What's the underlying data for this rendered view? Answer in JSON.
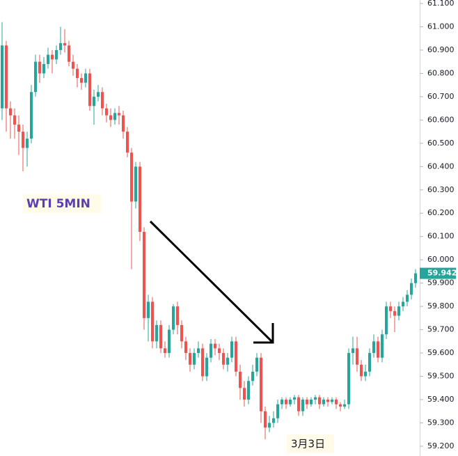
{
  "chart_data": {
    "type": "candlestick",
    "annotations": [
      "WTI 5MIN",
      "3月3日"
    ],
    "up_color": "#26a69a",
    "down_color": "#ef5350",
    "last_price_color": "#26a69a",
    "ylim": [
      59.158,
      61.115
    ],
    "yticks": [
      {
        "value": 61.1,
        "label": "61.100"
      },
      {
        "value": 61.0,
        "label": "61.000"
      },
      {
        "value": 60.9,
        "label": "60.900"
      },
      {
        "value": 60.8,
        "label": "60.800"
      },
      {
        "value": 60.7,
        "label": "60.700"
      },
      {
        "value": 60.6,
        "label": "60.600"
      },
      {
        "value": 60.5,
        "label": "60.500"
      },
      {
        "value": 60.4,
        "label": "60.400"
      },
      {
        "value": 60.3,
        "label": "60.300"
      },
      {
        "value": 60.2,
        "label": "60.200"
      },
      {
        "value": 60.1,
        "label": "60.100"
      },
      {
        "value": 60.0,
        "label": "60.000"
      },
      {
        "value": 59.9,
        "label": "59.900"
      },
      {
        "value": 59.8,
        "label": "59.800"
      },
      {
        "value": 59.7,
        "label": "59.700"
      },
      {
        "value": 59.6,
        "label": "59.600"
      },
      {
        "value": 59.5,
        "label": "59.500"
      },
      {
        "value": 59.4,
        "label": "59.400"
      },
      {
        "value": 59.3,
        "label": "59.300"
      },
      {
        "value": 59.2,
        "label": "59.200"
      }
    ],
    "open": [
      60.65,
      60.92,
      60.65,
      60.62,
      60.58,
      60.55,
      60.48,
      60.52,
      60.72,
      60.85,
      60.8,
      60.84,
      60.88,
      60.86,
      60.9,
      60.93,
      60.92,
      60.85,
      60.82,
      60.78,
      60.76,
      60.8,
      60.66,
      60.7,
      60.72,
      60.65,
      60.62,
      60.6,
      60.63,
      60.62,
      60.55,
      60.46,
      60.25,
      60.4,
      60.12,
      59.75,
      59.82,
      59.65,
      59.72,
      59.62,
      59.6,
      59.7,
      59.8,
      59.72,
      59.65,
      59.6,
      59.55,
      59.6,
      59.62,
      59.5,
      59.58,
      59.64,
      59.62,
      59.6,
      59.55,
      59.58,
      59.65,
      59.52,
      59.45,
      59.4,
      59.48,
      59.52,
      59.58,
      59.35,
      59.28,
      59.3,
      59.32,
      59.38,
      59.4,
      59.38,
      59.4,
      59.41,
      59.35,
      59.4,
      59.38,
      59.4,
      59.41,
      59.38,
      59.4,
      59.39,
      59.4,
      59.38,
      59.37,
      59.38,
      59.6,
      59.62,
      59.55,
      59.5,
      59.52,
      59.6,
      59.65,
      59.58,
      59.68,
      59.8,
      59.78,
      59.76,
      59.8,
      59.82,
      59.85,
      59.9
    ],
    "high": [
      61.02,
      60.94,
      60.68,
      60.65,
      60.62,
      60.58,
      60.55,
      60.75,
      60.88,
      60.88,
      60.87,
      60.91,
      60.9,
      60.92,
      61.0,
      60.99,
      60.94,
      60.88,
      60.84,
      60.8,
      60.82,
      60.82,
      60.73,
      60.75,
      60.74,
      60.67,
      60.65,
      60.65,
      60.66,
      60.64,
      60.57,
      60.48,
      60.42,
      60.42,
      60.14,
      59.85,
      59.84,
      59.74,
      59.74,
      59.65,
      59.72,
      59.81,
      59.82,
      59.74,
      59.67,
      59.62,
      59.62,
      59.65,
      59.64,
      59.6,
      59.66,
      59.66,
      59.64,
      59.62,
      59.6,
      59.67,
      59.67,
      59.55,
      59.48,
      59.5,
      59.55,
      59.6,
      59.6,
      59.37,
      59.33,
      59.35,
      59.4,
      59.41,
      59.41,
      59.41,
      59.42,
      59.42,
      59.41,
      59.41,
      59.41,
      59.42,
      59.42,
      59.41,
      59.41,
      59.41,
      59.41,
      59.39,
      59.4,
      59.62,
      59.67,
      59.67,
      59.57,
      59.55,
      59.62,
      59.68,
      59.67,
      59.7,
      59.82,
      59.82,
      59.8,
      59.82,
      59.84,
      59.87,
      59.92,
      59.96
    ],
    "low": [
      60.6,
      60.55,
      60.52,
      60.52,
      60.45,
      60.38,
      60.4,
      60.5,
      60.7,
      60.76,
      60.78,
      60.82,
      60.8,
      60.84,
      60.88,
      60.89,
      60.83,
      60.79,
      60.74,
      60.73,
      60.74,
      60.64,
      60.58,
      60.68,
      60.62,
      60.59,
      60.57,
      60.58,
      60.58,
      60.52,
      60.44,
      59.96,
      60.22,
      60.08,
      59.7,
      59.65,
      59.62,
      59.62,
      59.6,
      59.58,
      59.58,
      59.68,
      59.68,
      59.62,
      59.57,
      59.52,
      59.53,
      59.58,
      59.48,
      59.48,
      59.56,
      59.59,
      59.57,
      59.53,
      59.52,
      59.56,
      59.5,
      59.4,
      59.37,
      59.38,
      59.46,
      59.5,
      59.3,
      59.23,
      59.26,
      59.28,
      59.3,
      59.36,
      59.36,
      59.37,
      59.38,
      59.33,
      59.33,
      59.36,
      59.37,
      59.38,
      59.36,
      59.37,
      59.37,
      59.38,
      59.36,
      59.35,
      59.36,
      59.36,
      59.55,
      59.52,
      59.48,
      59.48,
      59.5,
      59.58,
      59.56,
      59.56,
      59.66,
      59.75,
      59.69,
      59.74,
      59.78,
      59.8,
      59.83,
      59.88
    ],
    "close": [
      60.92,
      60.65,
      60.62,
      60.58,
      60.55,
      60.48,
      60.52,
      60.72,
      60.85,
      60.8,
      60.84,
      60.88,
      60.86,
      60.9,
      60.93,
      60.92,
      60.85,
      60.82,
      60.78,
      60.76,
      60.8,
      60.66,
      60.7,
      60.72,
      60.65,
      60.62,
      60.6,
      60.63,
      60.62,
      60.55,
      60.46,
      60.25,
      60.4,
      60.12,
      59.75,
      59.82,
      59.65,
      59.72,
      59.62,
      59.6,
      59.7,
      59.8,
      59.72,
      59.65,
      59.6,
      59.55,
      59.6,
      59.62,
      59.5,
      59.58,
      59.64,
      59.62,
      59.6,
      59.55,
      59.58,
      59.65,
      59.52,
      59.45,
      59.4,
      59.48,
      59.52,
      59.58,
      59.35,
      59.28,
      59.3,
      59.32,
      59.38,
      59.4,
      59.38,
      59.4,
      59.41,
      59.35,
      59.4,
      59.38,
      59.4,
      59.41,
      59.38,
      59.4,
      59.39,
      59.4,
      59.38,
      59.37,
      59.38,
      59.6,
      59.62,
      59.55,
      59.5,
      59.52,
      59.6,
      59.65,
      59.58,
      59.68,
      59.8,
      59.78,
      59.76,
      59.8,
      59.82,
      59.85,
      59.9,
      59.942
    ]
  }
}
